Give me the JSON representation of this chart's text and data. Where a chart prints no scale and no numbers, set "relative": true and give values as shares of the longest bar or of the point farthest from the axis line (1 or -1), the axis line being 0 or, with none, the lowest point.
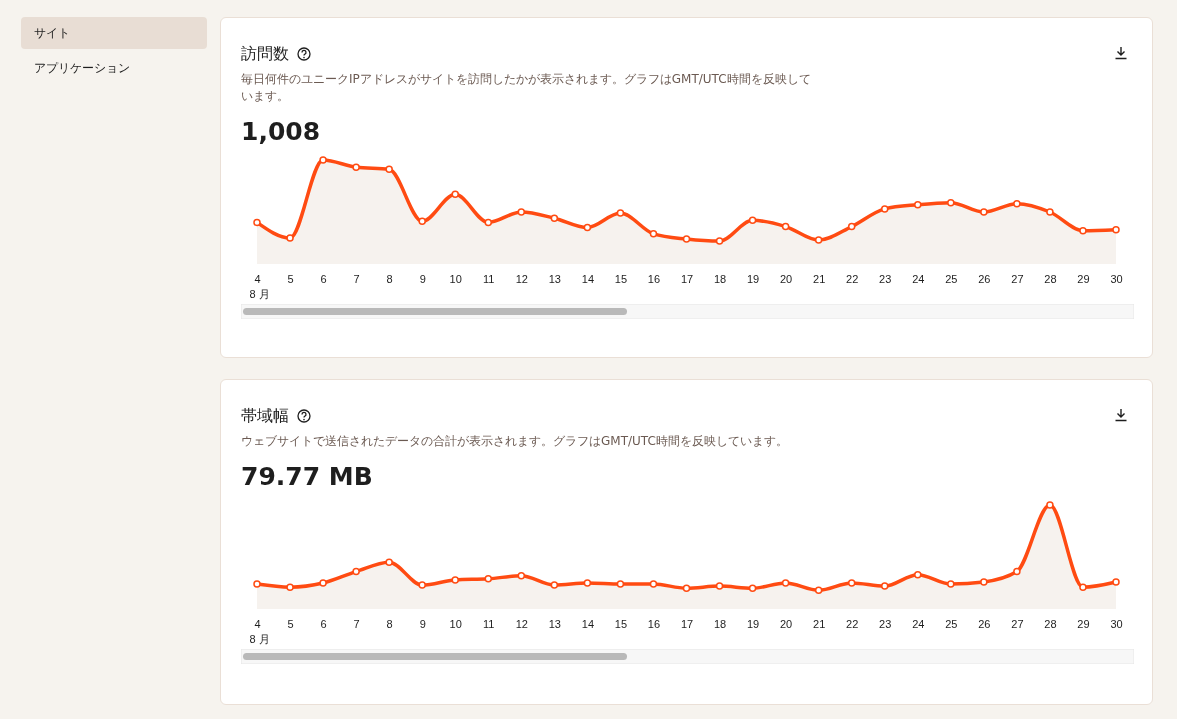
{
  "chart_data": [
    {
      "type": "other",
      "annotations": [
        "サイト",
        "アプリケーション"
      ]
    },
    {
      "type": "area",
      "title": "訪問数",
      "subtitle": "毎日何件のユニークIPアドレスがサイトを訪問したかが表示されます。グラフはGMT/UTC時間を反映しています。",
      "annotations": [
        "1,008"
      ],
      "relative": true,
      "color": "#ff4b12",
      "marker": "circle",
      "categories": [
        "4\n8 月",
        "5",
        "6",
        "7",
        "8",
        "9",
        "10",
        "11",
        "12",
        "13",
        "14",
        "15",
        "16",
        "17",
        "18",
        "19",
        "20",
        "21",
        "22",
        "23",
        "24",
        "25",
        "26",
        "27",
        "28",
        "29",
        "30"
      ],
      "values": [
        0.4,
        0.25,
        1.0,
        0.93,
        0.91,
        0.41,
        0.67,
        0.4,
        0.5,
        0.44,
        0.35,
        0.49,
        0.29,
        0.24,
        0.22,
        0.42,
        0.36,
        0.23,
        0.36,
        0.53,
        0.57,
        0.59,
        0.5,
        0.58,
        0.5,
        0.32,
        0.33
      ]
    },
    {
      "type": "area",
      "title": "帯域幅",
      "subtitle": "ウェブサイトで送信されたデータの合計が表示されます。グラフはGMT/UTC時間を反映しています。",
      "annotations": [
        "79.77 MB"
      ],
      "relative": true,
      "color": "#ff4b12",
      "marker": "circle",
      "categories": [
        "4\n8 月",
        "5",
        "6",
        "7",
        "8",
        "9",
        "10",
        "11",
        "12",
        "13",
        "14",
        "15",
        "16",
        "17",
        "18",
        "19",
        "20",
        "21",
        "22",
        "23",
        "24",
        "25",
        "26",
        "27",
        "28",
        "29",
        "30"
      ],
      "values": [
        0.24,
        0.21,
        0.25,
        0.36,
        0.45,
        0.23,
        0.28,
        0.29,
        0.32,
        0.23,
        0.25,
        0.24,
        0.24,
        0.2,
        0.22,
        0.2,
        0.25,
        0.18,
        0.25,
        0.22,
        0.33,
        0.24,
        0.26,
        0.36,
        1.0,
        0.21,
        0.26
      ]
    }
  ]
}
